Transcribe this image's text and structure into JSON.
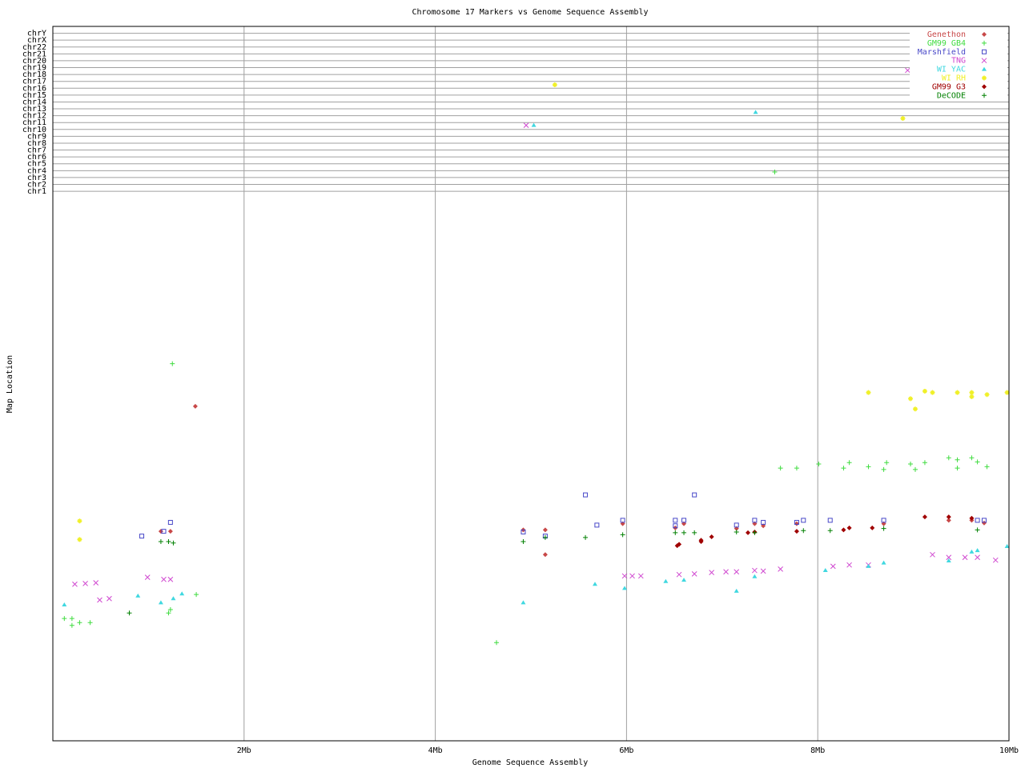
{
  "chart_data": {
    "type": "scatter",
    "title": "Chromosome 17 Markers vs Genome Sequence Assembly",
    "x_label": "Genome Sequence Assembly",
    "y_label": "Map Location",
    "xlim": [
      0,
      10
    ],
    "xticks": [
      {
        "value": 2,
        "label": "2Mb"
      },
      {
        "value": 4,
        "label": "4Mb"
      },
      {
        "value": 6,
        "label": "6Mb"
      },
      {
        "value": 8,
        "label": "8Mb"
      },
      {
        "value": 10,
        "label": "10Mb"
      }
    ],
    "ylim": [
      0,
      104
    ],
    "yticks": [
      {
        "value": 80,
        "label": "chr1"
      },
      {
        "value": 81,
        "label": "chr2"
      },
      {
        "value": 82,
        "label": "chr3"
      },
      {
        "value": 83,
        "label": "chr4"
      },
      {
        "value": 84,
        "label": "chr5"
      },
      {
        "value": 85,
        "label": "chr6"
      },
      {
        "value": 86,
        "label": "chr7"
      },
      {
        "value": 87,
        "label": "chr8"
      },
      {
        "value": 88,
        "label": "chr9"
      },
      {
        "value": 89,
        "label": "chr10"
      },
      {
        "value": 90,
        "label": "chr11"
      },
      {
        "value": 91,
        "label": "chr12"
      },
      {
        "value": 92,
        "label": "chr13"
      },
      {
        "value": 93,
        "label": "chr14"
      },
      {
        "value": 94,
        "label": "chr15"
      },
      {
        "value": 95,
        "label": "chr16"
      },
      {
        "value": 96,
        "label": "chr17"
      },
      {
        "value": 97,
        "label": "chr18"
      },
      {
        "value": 98,
        "label": "chr19"
      },
      {
        "value": 99,
        "label": "chr20"
      },
      {
        "value": 100,
        "label": "chr21"
      },
      {
        "value": 101,
        "label": "chr22"
      },
      {
        "value": 102,
        "label": "chrX"
      },
      {
        "value": 103,
        "label": "chrY"
      }
    ],
    "grid": true,
    "legend": "top-right",
    "series": [
      {
        "name": "Genethon",
        "color": "#c84848",
        "marker": "diamond",
        "x": [
          1.49,
          1.13,
          1.23,
          5.15,
          4.92,
          5.15,
          5.96,
          6.51,
          6.6,
          7.15,
          7.34,
          7.43,
          7.78,
          8.69,
          9.37,
          9.61,
          9.74
        ],
        "values": [
          48.7,
          30.5,
          30.5,
          30.7,
          30.7,
          27.1,
          31.6,
          31.0,
          31.6,
          30.9,
          31.6,
          31.3,
          31.6,
          31.6,
          32.1,
          32.1,
          31.7
        ]
      },
      {
        "name": "GM99 GB4",
        "color": "#40dc40",
        "marker": "plus",
        "x": [
          1.25,
          0.12,
          0.2,
          0.28,
          0.2,
          0.39,
          1.23,
          1.21,
          1.5,
          4.64,
          7.55,
          7.61,
          7.78,
          8.01,
          8.27,
          8.33,
          8.53,
          8.72,
          8.69,
          8.97,
          9.02,
          9.12,
          9.37,
          9.46,
          9.46,
          9.61,
          9.67,
          9.77
        ],
        "values": [
          54.9,
          17.8,
          17.8,
          17.2,
          16.8,
          17.2,
          19.1,
          18.6,
          21.3,
          14.3,
          82.8,
          39.7,
          39.7,
          40.3,
          39.7,
          40.5,
          39.9,
          40.5,
          39.5,
          40.3,
          39.5,
          40.5,
          41.2,
          39.7,
          40.9,
          41.2,
          40.6,
          39.9
        ]
      },
      {
        "name": "Marshfield",
        "color": "#4848c8",
        "marker": "square",
        "x": [
          0.93,
          1.23,
          1.16,
          4.92,
          5.15,
          5.57,
          5.69,
          5.96,
          6.51,
          6.6,
          6.51,
          6.71,
          7.15,
          7.34,
          7.43,
          7.78,
          7.85,
          8.13,
          8.69,
          9.67,
          9.74
        ],
        "values": [
          29.8,
          31.8,
          30.5,
          30.4,
          29.8,
          35.8,
          31.4,
          32.1,
          32.1,
          32.1,
          31.3,
          35.8,
          31.4,
          32.1,
          31.8,
          31.8,
          32.1,
          32.1,
          32.1,
          32.1,
          32.1
        ]
      },
      {
        "name": "TNG",
        "color": "#d048d0",
        "marker": "cross",
        "x": [
          0.23,
          0.34,
          0.45,
          0.49,
          0.59,
          0.99,
          1.16,
          1.23,
          4.95,
          8.94,
          5.98,
          6.06,
          6.15,
          6.55,
          6.71,
          6.89,
          7.04,
          7.15,
          7.34,
          7.43,
          7.61,
          8.16,
          8.33,
          8.53,
          9.2,
          9.37,
          9.54,
          9.67,
          9.86
        ],
        "values": [
          22.8,
          22.9,
          23.0,
          20.5,
          20.7,
          23.8,
          23.5,
          23.5,
          89.6,
          97.6,
          24.0,
          24.0,
          24.0,
          24.2,
          24.3,
          24.5,
          24.6,
          24.6,
          24.8,
          24.7,
          25.0,
          25.4,
          25.6,
          25.6,
          27.1,
          26.7,
          26.7,
          26.7,
          26.3
        ]
      },
      {
        "name": "WI YAC",
        "color": "#40d8e0",
        "marker": "triangle",
        "x": [
          0.12,
          0.89,
          1.13,
          1.26,
          1.35,
          5.03,
          7.35,
          4.92,
          5.67,
          5.98,
          6.41,
          6.6,
          7.15,
          7.34,
          8.08,
          8.53,
          8.69,
          9.37,
          9.61,
          9.67,
          9.98
        ],
        "values": [
          19.8,
          21.1,
          20.1,
          20.7,
          21.4,
          89.6,
          91.5,
          20.1,
          22.8,
          22.2,
          23.2,
          23.4,
          21.8,
          23.9,
          24.8,
          25.4,
          25.9,
          26.2,
          27.5,
          27.7,
          28.3
        ]
      },
      {
        "name": "WI RH",
        "color": "#f0f028",
        "marker": "star",
        "x": [
          0.28,
          0.28,
          5.25,
          8.89,
          8.53,
          8.97,
          9.02,
          9.12,
          9.2,
          9.46,
          9.61,
          9.61,
          9.77,
          9.98
        ],
        "values": [
          32.0,
          29.3,
          95.5,
          90.6,
          50.7,
          49.8,
          48.3,
          50.9,
          50.7,
          50.7,
          50.7,
          50.1,
          50.4,
          50.7
        ]
      },
      {
        "name": "GM99 G3",
        "color": "#a00000",
        "marker": "diamond",
        "x": [
          6.55,
          6.53,
          6.78,
          6.78,
          6.89,
          7.27,
          7.34,
          7.78,
          8.27,
          8.33,
          8.57,
          9.12,
          9.37,
          9.61
        ],
        "values": [
          28.6,
          28.4,
          29.2,
          29.0,
          29.7,
          30.3,
          30.4,
          30.5,
          30.7,
          31.0,
          31.0,
          32.6,
          32.6,
          32.4
        ]
      },
      {
        "name": "DeCODE",
        "color": "#008000",
        "marker": "plus",
        "x": [
          0.8,
          1.13,
          1.21,
          1.26,
          4.92,
          5.15,
          5.57,
          5.96,
          6.51,
          6.6,
          6.71,
          7.15,
          7.34,
          7.85,
          8.13,
          8.69,
          9.67
        ],
        "values": [
          18.6,
          29.0,
          29.0,
          28.8,
          29.0,
          29.6,
          29.6,
          30.0,
          30.3,
          30.3,
          30.3,
          30.4,
          30.3,
          30.6,
          30.6,
          30.9,
          30.7
        ]
      }
    ]
  }
}
